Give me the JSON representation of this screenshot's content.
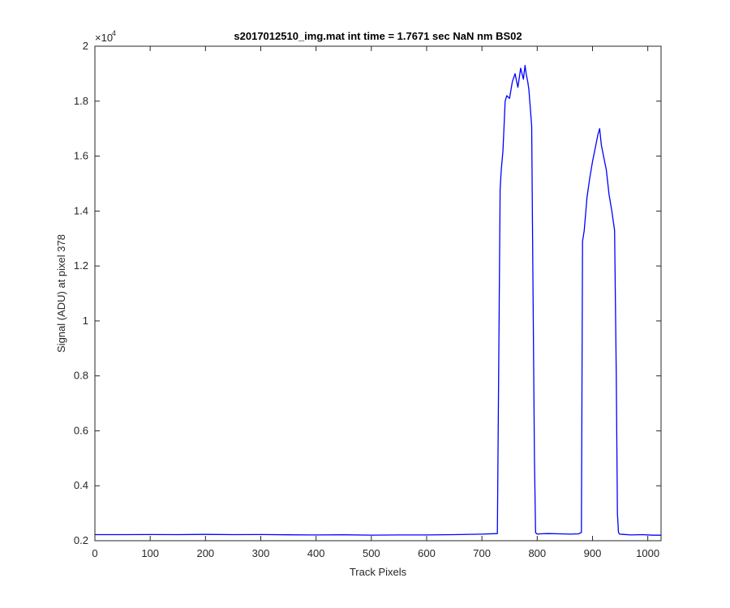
{
  "chart_data": {
    "type": "line",
    "title": "s2017012510_img.mat int time = 1.7671 sec  NaN nm BS02",
    "xlabel": "Track Pixels",
    "ylabel": "Signal (ADU) at pixel 378",
    "xlim": [
      0,
      1024
    ],
    "ylim": [
      2000,
      20000
    ],
    "y_exponent_label": "×10",
    "y_exponent_power": "4",
    "x_ticks": [
      0,
      100,
      200,
      300,
      400,
      500,
      600,
      700,
      800,
      900,
      1000
    ],
    "x_tick_labels": [
      "0",
      "100",
      "200",
      "300",
      "400",
      "500",
      "600",
      "700",
      "800",
      "900",
      "1000"
    ],
    "y_ticks": [
      2000,
      4000,
      6000,
      8000,
      10000,
      12000,
      14000,
      16000,
      18000,
      20000
    ],
    "y_tick_labels": [
      "0.2",
      "0.4",
      "0.6",
      "0.8",
      "1",
      "1.2",
      "1.4",
      "1.6",
      "1.8",
      "2"
    ],
    "grid": false,
    "series": [
      {
        "color": "#0000ff",
        "x": [
          0,
          50,
          100,
          150,
          200,
          250,
          300,
          350,
          400,
          450,
          500,
          550,
          600,
          650,
          700,
          728,
          733,
          735,
          738,
          742,
          745,
          750,
          755,
          760,
          765,
          770,
          775,
          778,
          780,
          783,
          785,
          790,
          792,
          795,
          797,
          799,
          802,
          805,
          820,
          840,
          860,
          875,
          880,
          882,
          885,
          890,
          895,
          900,
          905,
          910,
          913,
          916,
          920,
          925,
          930,
          935,
          940,
          943,
          945,
          947,
          949,
          955,
          970,
          990,
          1010,
          1024
        ],
        "y": [
          2220,
          2220,
          2225,
          2220,
          2230,
          2220,
          2225,
          2215,
          2210,
          2215,
          2205,
          2210,
          2210,
          2220,
          2240,
          2260,
          14800,
          15500,
          16200,
          18000,
          18200,
          18100,
          18700,
          19000,
          18500,
          19200,
          18800,
          19300,
          19000,
          18700,
          18400,
          17100,
          12000,
          5000,
          2300,
          2250,
          2240,
          2250,
          2260,
          2250,
          2240,
          2250,
          2300,
          12900,
          13300,
          14500,
          15200,
          15800,
          16300,
          16800,
          17000,
          16400,
          16000,
          15500,
          14600,
          14000,
          13300,
          8000,
          3000,
          2300,
          2240,
          2230,
          2210,
          2220,
          2200,
          2200
        ]
      }
    ]
  }
}
